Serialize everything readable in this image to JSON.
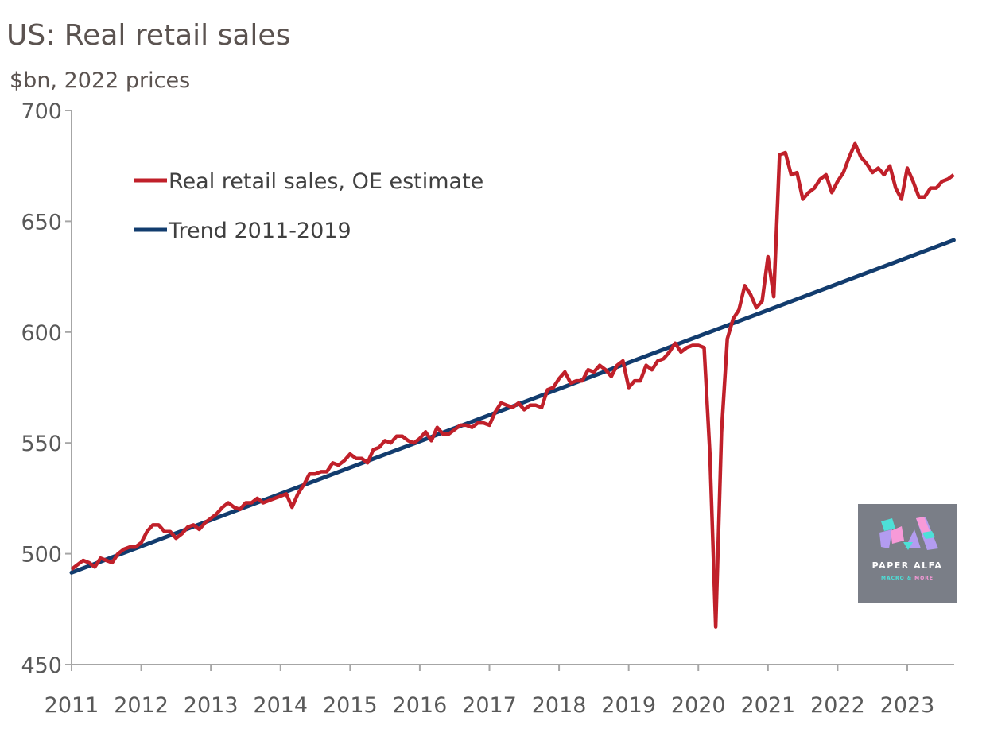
{
  "chart_data": {
    "type": "line",
    "title": "US: Real retail sales",
    "subtitle": "$bn, 2022 prices",
    "xlabel": "",
    "ylabel": "$bn, 2022 prices",
    "ylim": [
      450,
      700
    ],
    "xlim": [
      "2011-01",
      "2023-09"
    ],
    "yticks": [
      "700",
      "650",
      "600",
      "550",
      "500",
      "450"
    ],
    "ytick_values": [
      700,
      650,
      600,
      550,
      500,
      450
    ],
    "xticks": [
      "2011",
      "2012",
      "2013",
      "2014",
      "2015",
      "2016",
      "2017",
      "2018",
      "2019",
      "2020",
      "2021",
      "2022",
      "2023"
    ],
    "grid": false,
    "legend_position": "top-left",
    "colors": {
      "red": "#c0202a",
      "blue": "#123c6e",
      "axis": "#a6a6a6"
    },
    "series": [
      {
        "name": "Real retail sales, OE estimate",
        "frequency": "monthly",
        "start": "2011-01",
        "values": [
          493,
          495,
          497,
          496,
          494,
          498,
          497,
          496,
          500,
          502,
          503,
          503,
          505,
          510,
          513,
          513,
          510,
          510,
          507,
          509,
          512,
          513,
          511,
          514,
          516,
          518,
          521,
          523,
          521,
          520,
          523,
          523,
          525,
          523,
          524,
          525,
          526,
          527,
          521,
          527,
          531,
          536,
          536,
          537,
          537,
          541,
          540,
          542,
          545,
          543,
          543,
          541,
          547,
          548,
          551,
          550,
          553,
          553,
          551,
          550,
          552,
          555,
          551,
          557,
          554,
          554,
          556,
          558,
          558,
          557,
          559,
          559,
          558,
          564,
          568,
          567,
          566,
          568,
          565,
          567,
          567,
          566,
          574,
          575,
          579,
          582,
          577,
          578,
          578,
          583,
          582,
          585,
          583,
          580,
          585,
          587,
          575,
          578,
          578,
          585,
          583,
          587,
          588,
          591,
          595,
          591,
          593,
          594,
          594,
          593,
          545,
          467,
          555,
          597,
          606,
          610,
          621,
          617,
          611,
          614,
          634,
          616,
          680,
          681,
          671,
          672,
          660,
          663,
          665,
          669,
          671,
          663,
          668,
          672,
          679,
          685,
          679,
          676,
          672,
          674,
          671,
          675,
          665,
          660,
          674,
          668,
          661,
          661,
          665,
          665,
          668,
          669,
          671
        ]
      },
      {
        "name": "Trend 2011-2019",
        "frequency": "linear",
        "x": [
          "2011-01",
          "2023-09"
        ],
        "values": [
          491.5,
          641.5
        ]
      }
    ]
  },
  "logo": {
    "name": "PAPER ALFA",
    "tagline_a": "MACRO &",
    "tagline_b": "MORE"
  }
}
